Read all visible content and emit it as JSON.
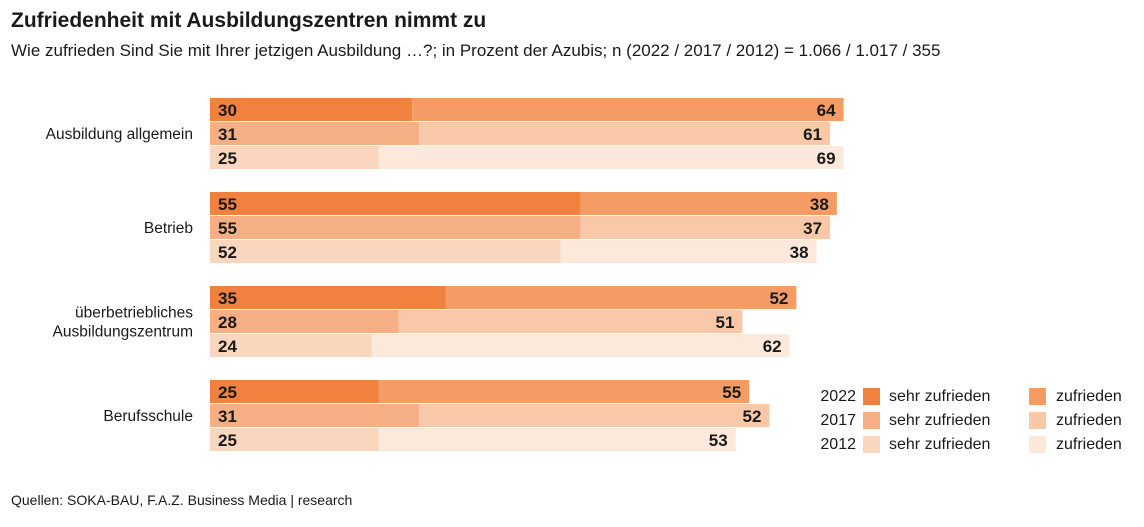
{
  "title": "Zufriedenheit mit Ausbildungszentren nimmt zu",
  "subtitle": "Wie zufrieden Sind Sie mit Ihrer jetzigen Ausbildung …?; in Prozent der Azubis; n (2022 / 2017 / 2012) = 1.066 / 1.017 / 355",
  "source": "Quellen: SOKA-BAU, F.A.Z. Business Media | research",
  "colors": {
    "2022": {
      "sehr": "#f0813f",
      "zufrieden": "#f49c64"
    },
    "2017": {
      "sehr": "#f6af85",
      "zufrieden": "#f9c8a8"
    },
    "2012": {
      "sehr": "#fad6bf",
      "zufrieden": "#fde9dc"
    }
  },
  "chart_data": {
    "type": "bar",
    "orientation": "horizontal",
    "stacked": true,
    "categories": [
      {
        "label": [
          "Ausbildung allgemein"
        ],
        "values": {
          "2022": [
            30,
            64
          ],
          "2017": [
            31,
            61
          ],
          "2012": [
            25,
            69
          ]
        }
      },
      {
        "label": [
          "Betrieb"
        ],
        "values": {
          "2022": [
            55,
            38
          ],
          "2017": [
            55,
            37
          ],
          "2012": [
            52,
            38
          ]
        }
      },
      {
        "label": [
          "überbetriebliches",
          "Ausbildungszentrum"
        ],
        "values": {
          "2022": [
            35,
            52
          ],
          "2017": [
            28,
            51
          ],
          "2012": [
            24,
            62
          ]
        }
      },
      {
        "label": [
          "Berufsschule"
        ],
        "values": {
          "2022": [
            25,
            55
          ],
          "2017": [
            31,
            52
          ],
          "2012": [
            25,
            53
          ]
        }
      }
    ],
    "years": [
      "2022",
      "2017",
      "2012"
    ],
    "segments": [
      "sehr zufrieden",
      "zufrieden"
    ],
    "xlim": [
      0,
      100
    ]
  },
  "legend": [
    {
      "year": "2022",
      "sehr": "sehr zufrieden",
      "zufrieden": "zufrieden"
    },
    {
      "year": "2017",
      "sehr": "sehr zufrieden",
      "zufrieden": "zufrieden"
    },
    {
      "year": "2012",
      "sehr": "sehr zufrieden",
      "zufrieden": "zufrieden"
    }
  ]
}
